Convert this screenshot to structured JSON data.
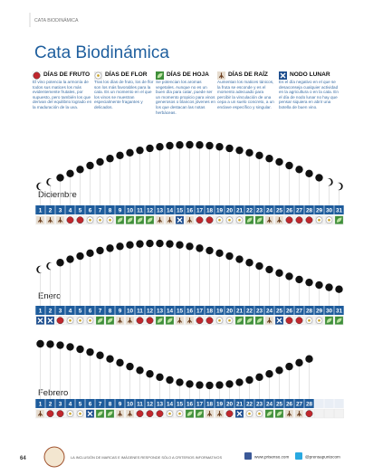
{
  "header": {
    "section": "CATA BIODINÁMICA",
    "title": "Cata Biodinámica"
  },
  "legend": [
    {
      "label": "DÍAS DE FRUTO",
      "text": "El vino potencia la armonía de todos sus matices los más evidentemente frutales, por supuesto, pero también los que derivan del equilibrio logrado en la maduración de la uva."
    },
    {
      "label": "DÍAS DE FLOR",
      "text": "Tras los días de fruto, los de flor son los más favorables para la cata. Es un momento en el que los vinos se muestran especialmente fragantes y delicados."
    },
    {
      "label": "DÍAS DE HOJA",
      "text": "Se potencian los aromas vegetales. Aunque no es un buen día para catar, puede ser un momento propicio para vinos generosos o blancos jóvenes en los que destacan las notas herbáceas."
    },
    {
      "label": "DÍAS DE RAÍZ",
      "text": "Aumentan los matices tánicos, la fruta se esconde y es el momento adecuado para percibir la vinculación de una cepa a un suelo concreto, a un enclave específico y singular."
    },
    {
      "label": "NODO LUNAR",
      "text": "Es el día negativo en el que se desaconseja cualquier actividad en la agricultura o en la cata. En el día de nodo lunar no hay que pensar siquiera en abrir una botella de buen vino."
    }
  ],
  "months": [
    {
      "name": "Diciembre",
      "days": [
        1,
        2,
        3,
        4,
        5,
        6,
        7,
        8,
        9,
        10,
        11,
        12,
        13,
        14,
        15,
        16,
        17,
        18,
        19,
        20,
        21,
        22,
        23,
        24,
        25,
        26,
        27,
        28,
        29,
        30,
        31
      ],
      "icons": [
        3,
        3,
        3,
        0,
        0,
        1,
        1,
        1,
        2,
        2,
        2,
        2,
        3,
        3,
        4,
        3,
        0,
        0,
        1,
        1,
        1,
        2,
        2,
        3,
        3,
        0,
        0,
        0,
        1,
        1,
        2
      ]
    },
    {
      "name": "Enero",
      "days": [
        1,
        2,
        3,
        4,
        5,
        6,
        7,
        8,
        9,
        10,
        11,
        12,
        13,
        14,
        15,
        16,
        17,
        18,
        19,
        20,
        21,
        22,
        23,
        24,
        25,
        26,
        27,
        28,
        29,
        30,
        31
      ],
      "icons": [
        4,
        4,
        0,
        1,
        1,
        1,
        2,
        2,
        3,
        3,
        0,
        0,
        2,
        2,
        3,
        3,
        0,
        0,
        1,
        1,
        2,
        2,
        2,
        3,
        4,
        0,
        0,
        1,
        1,
        2,
        2
      ]
    },
    {
      "name": "Febrero",
      "days": [
        1,
        2,
        3,
        4,
        5,
        6,
        7,
        8,
        9,
        10,
        11,
        12,
        13,
        14,
        15,
        16,
        17,
        18,
        19,
        20,
        21,
        22,
        23,
        24,
        25,
        26,
        27,
        28
      ],
      "icons": [
        3,
        0,
        0,
        1,
        1,
        4,
        2,
        2,
        3,
        3,
        0,
        0,
        0,
        1,
        1,
        2,
        2,
        3,
        3,
        0,
        4,
        1,
        1,
        2,
        2,
        3,
        3,
        0
      ]
    }
  ],
  "footer": {
    "page": "64",
    "disclaimer": "LA INCLUSIÓN DE MARCAS E IMÁGENES RESPONDE SÓLO A CRITERIOS INFORMATIVOS",
    "web": "www.prisenso.com",
    "twitter": "@prensapuntocom"
  }
}
